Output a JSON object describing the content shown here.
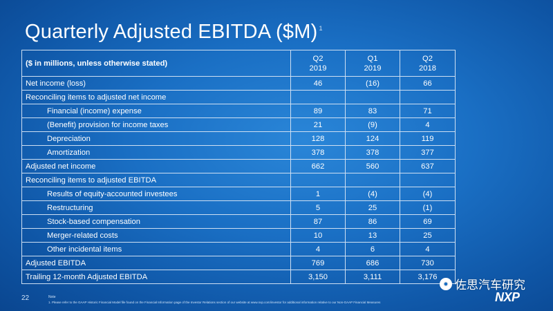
{
  "slide": {
    "title": "Quarterly Adjusted EBITDA ($M)",
    "title_mark": "1",
    "page_number": "22",
    "note_label": "Note",
    "note_text": "1. Please refer to the GAAP Historic Financial Model file found on the Financial Information page of the Investor Relations section of our website at www.nxp.com/investor for additional information relative to our Non-GAAP Financial Measures",
    "watermark": "佐思汽车研究",
    "logo": "NXP"
  },
  "table": {
    "header": {
      "label": "($ in millions, unless otherwise stated)",
      "columns": [
        {
          "line1": "Q2",
          "line2": "2019"
        },
        {
          "line1": "Q1",
          "line2": "2019"
        },
        {
          "line1": "Q2",
          "line2": "2018"
        }
      ]
    },
    "rows": [
      {
        "label": "Net income (loss)",
        "values": [
          "46",
          "(16)",
          "66"
        ]
      },
      {
        "label": "Reconciling items to adjusted net income",
        "values": [
          "",
          "",
          ""
        ]
      },
      {
        "label": "Financial (income) expense",
        "values": [
          "89",
          "83",
          "71"
        ]
      },
      {
        "label": "(Benefit) provision for income taxes",
        "values": [
          "21",
          "(9)",
          "4"
        ]
      },
      {
        "label": "Depreciation",
        "values": [
          "128",
          "124",
          "119"
        ]
      },
      {
        "label": "Amortization",
        "values": [
          "378",
          "378",
          "377"
        ]
      },
      {
        "label": "Adjusted net income",
        "values": [
          "662",
          "560",
          "637"
        ]
      },
      {
        "label": "Reconciling items to adjusted EBITDA",
        "values": [
          "",
          "",
          ""
        ]
      },
      {
        "label": "Results of equity-accounted investees",
        "values": [
          "1",
          "(4)",
          "(4)"
        ]
      },
      {
        "label": "Restructuring",
        "values": [
          "5",
          "25",
          "(1)"
        ]
      },
      {
        "label": "Stock-based compensation",
        "values": [
          "87",
          "86",
          "69"
        ]
      },
      {
        "label": "Merger-related costs",
        "values": [
          "10",
          "13",
          "25"
        ]
      },
      {
        "label": "Other incidental items",
        "values": [
          "4",
          "6",
          "4"
        ]
      },
      {
        "label": "Adjusted EBITDA",
        "values": [
          "769",
          "686",
          "730"
        ]
      },
      {
        "label": "Trailing 12-month Adjusted EBITDA",
        "values": [
          "3,150",
          "3,111",
          "3,176"
        ]
      }
    ]
  }
}
